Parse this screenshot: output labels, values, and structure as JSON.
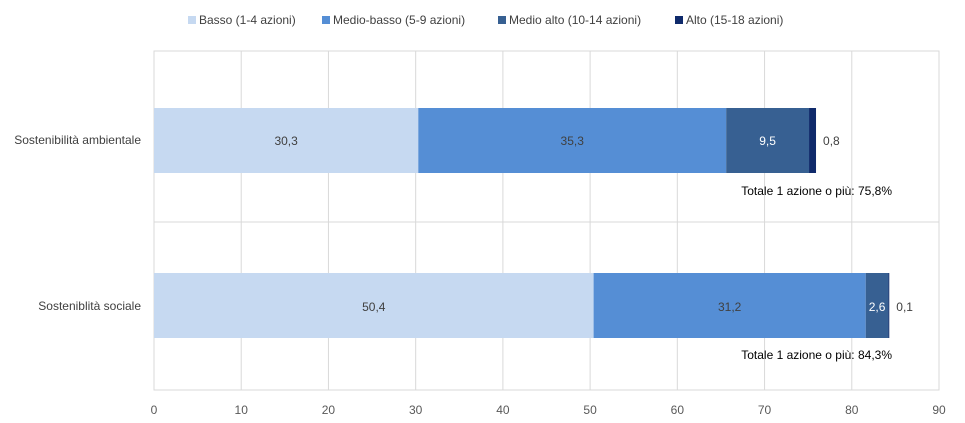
{
  "chart_data": {
    "type": "bar",
    "orientation": "horizontal",
    "stacked": true,
    "categories": [
      "Sostenibilità ambientale",
      "Sosteniblità sociale"
    ],
    "series": [
      {
        "name": "Basso (1-4 azioni)",
        "color": "#c6d9f1",
        "values": [
          30.3,
          50.4
        ],
        "labels": [
          "30,3",
          "50,4"
        ]
      },
      {
        "name": "Medio-basso (5-9 azioni)",
        "color": "#558ed5",
        "values": [
          35.3,
          31.2
        ],
        "labels": [
          "35,3",
          "31,2"
        ]
      },
      {
        "name": "Medio alto (10-14 azioni)",
        "color": "#376092",
        "values": [
          9.5,
          2.6
        ],
        "labels": [
          "9,5",
          "2,6"
        ]
      },
      {
        "name": "Alto (15-18 azioni)",
        "color": "#0f2a6b",
        "values": [
          0.8,
          0.1
        ],
        "labels": [
          "0,8",
          "0,1"
        ]
      }
    ],
    "annotations": [
      "Totale 1 azione o più: 75,8%",
      "Totale 1 azione o più: 84,3%"
    ],
    "xlim": [
      0,
      90
    ],
    "xticks": [
      "0",
      "10",
      "20",
      "30",
      "40",
      "50",
      "60",
      "70",
      "80",
      "90"
    ],
    "grid": true,
    "legend": "top-center"
  }
}
